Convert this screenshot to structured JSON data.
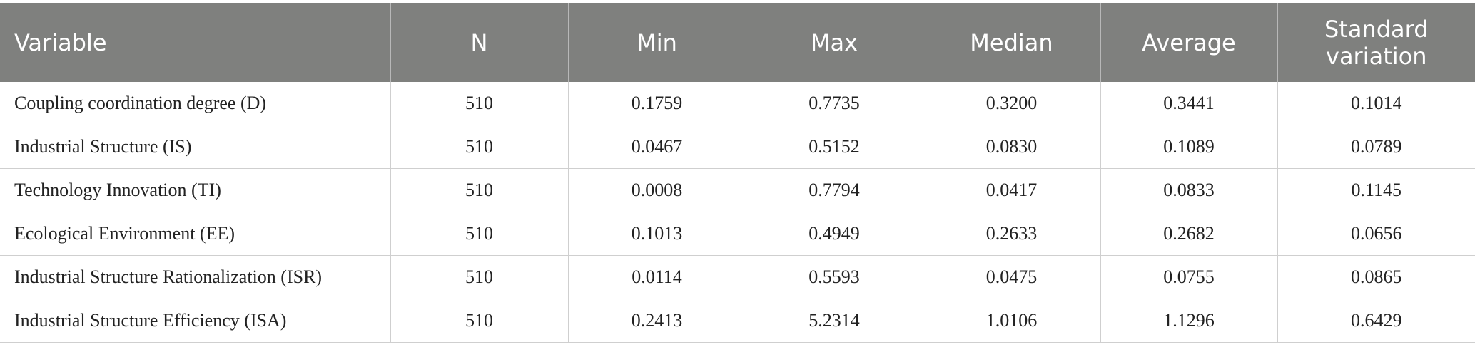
{
  "table": {
    "header": [
      "Variable",
      "N",
      "Min",
      "Max",
      "Median",
      "Average",
      "Standard variation"
    ],
    "rows": [
      [
        "Coupling coordination degree (D)",
        "510",
        "0.1759",
        "0.7735",
        "0.3200",
        "0.3441",
        "0.1014"
      ],
      [
        "Industrial Structure (IS)",
        "510",
        "0.0467",
        "0.5152",
        "0.0830",
        "0.1089",
        "0.0789"
      ],
      [
        "Technology Innovation (TI)",
        "510",
        "0.0008",
        "0.7794",
        "0.0417",
        "0.0833",
        "0.1145"
      ],
      [
        "Ecological Environment (EE)",
        "510",
        "0.1013",
        "0.4949",
        "0.2633",
        "0.2682",
        "0.0656"
      ],
      [
        "Industrial Structure Rationalization (ISR)",
        "510",
        "0.0114",
        "0.5593",
        "0.0475",
        "0.0755",
        "0.0865"
      ],
      [
        "Industrial Structure Efficiency (ISA)",
        "510",
        "0.2413",
        "5.2314",
        "1.0106",
        "1.1296",
        "0.6429"
      ]
    ]
  }
}
